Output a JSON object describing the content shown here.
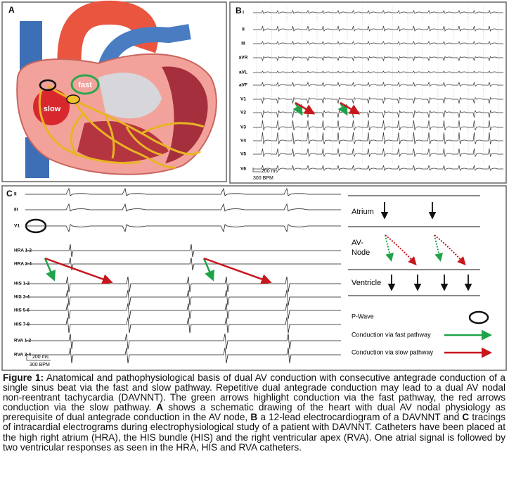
{
  "panel_a": {
    "label": "A",
    "fast_label": "fast",
    "slow_label": "slow"
  },
  "panel_b": {
    "label": "B",
    "leads": [
      "I",
      "II",
      "III",
      "aVR",
      "aVL",
      "aVF",
      "V1",
      "V2",
      "V3",
      "V4",
      "V5",
      "V6"
    ],
    "scale_time": "200 ms",
    "scale_rate": "300 BPM"
  },
  "panel_c": {
    "label": "C",
    "leads": [
      "II",
      "III",
      "V1",
      "HRA 1-2",
      "HRA 3-4",
      "HIS 1-2",
      "HIS 3-4",
      "HIS 5-6",
      "HIS 7-8",
      "RVA 1-2",
      "RVA 3-4"
    ],
    "scale_time": "200 ms",
    "scale_rate": "300 BPM",
    "legend": {
      "atrium": "Atrium",
      "av_node": [
        "AV-",
        "Node"
      ],
      "ventricle": "Ventricle",
      "p_wave": "P-Wave",
      "fast": "Conduction via fast pathway",
      "slow": "Conduction via slow pathway"
    }
  },
  "caption": {
    "label": "Figure 1:",
    "segments": [
      {
        "text": " Anatomical and pathophysiological basis of dual AV conduction with consecutive antegrade conduction of a single sinus beat via the fast and slow pathway. Repetitive dual antegrade conduction may lead to a dual AV nodal non-reentrant tachycardia (DAVNNT). The green arrows highlight conduction via the fast pathway, the red arrows conduction via the slow pathway. ",
        "bold": false
      },
      {
        "text": "A",
        "bold": true
      },
      {
        "text": " shows a schematic drawing of the heart with dual AV nodal physiology as prerequisite of dual antegrade conduction in the AV node, ",
        "bold": false
      },
      {
        "text": "B",
        "bold": true
      },
      {
        "text": " a 12-lead electrocardiogram of a DAVNNT and ",
        "bold": false
      },
      {
        "text": "C",
        "bold": true
      },
      {
        "text": " tracings of intracardial electrograms during electrophysiological study of a patient with DAVNNT. Catheters have been placed at the high right atrium (HRA), the HIS bundle (HIS) and the right ventricular apex (RVA). One atrial signal is followed by two ventricular responses as seen in the HRA, HIS and RVA catheters.",
        "bold": false
      }
    ]
  }
}
